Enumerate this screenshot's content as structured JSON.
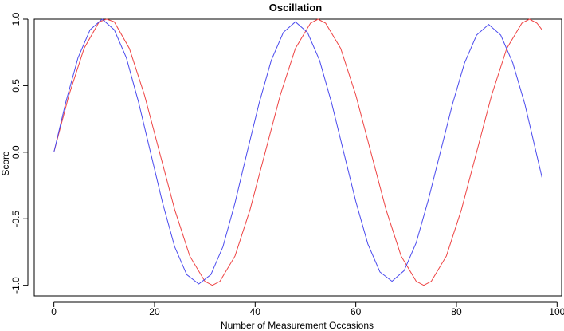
{
  "chart_data": {
    "type": "line",
    "title": "Oscillation",
    "xlabel": "Number of Measurement Occasions",
    "ylabel": "Score",
    "xlim": [
      -3.9,
      100.9
    ],
    "ylim": [
      -1.08,
      1.0
    ],
    "xticks": [
      0,
      20,
      40,
      60,
      80,
      100
    ],
    "yticks": [
      -1.0,
      -0.5,
      0.0,
      0.5,
      1.0
    ],
    "xtick_labels": [
      "0",
      "20",
      "40",
      "60",
      "80",
      "100"
    ],
    "ytick_labels": [
      "-1.0",
      "-0.5",
      "0.0",
      "0.5",
      "1.0"
    ],
    "grid": false,
    "legend": "none",
    "series": [
      {
        "color": "#ee4444",
        "x": [
          0,
          3,
          6,
          9,
          10.5,
          12,
          15,
          18,
          21,
          24,
          27,
          30,
          31.5,
          33,
          36,
          39,
          42,
          45,
          48,
          51,
          52.5,
          54,
          57,
          60,
          63,
          66,
          69,
          72,
          73.5,
          75,
          78,
          81,
          84,
          87,
          90,
          93,
          94.5,
          96,
          97
        ],
        "y": [
          0,
          0.43,
          0.78,
          0.98,
          1.0,
          0.98,
          0.78,
          0.43,
          0,
          -0.43,
          -0.78,
          -0.97,
          -1.0,
          -0.97,
          -0.78,
          -0.43,
          0,
          0.43,
          0.78,
          0.97,
          1.0,
          0.97,
          0.78,
          0.43,
          0,
          -0.43,
          -0.78,
          -0.97,
          -1.0,
          -0.97,
          -0.78,
          -0.43,
          0,
          0.43,
          0.78,
          0.97,
          1.0,
          0.97,
          0.92
        ]
      },
      {
        "color": "#4b4bee",
        "x": [
          0,
          2.4,
          4.8,
          7.2,
          9.6,
          12,
          14.4,
          16.8,
          19.2,
          21.6,
          24,
          26.4,
          28.8,
          31.2,
          33.6,
          36,
          38.4,
          40.8,
          43.2,
          45.6,
          48,
          50.4,
          52.8,
          55.2,
          57.6,
          60,
          62.4,
          64.8,
          67.2,
          69.6,
          72,
          74.4,
          76.8,
          79.2,
          81.6,
          84,
          86.4,
          88.8,
          91.2,
          93.6,
          97
        ],
        "y": [
          0,
          0.38,
          0.71,
          0.92,
          1.0,
          0.92,
          0.71,
          0.38,
          0,
          -0.38,
          -0.71,
          -0.92,
          -0.99,
          -0.92,
          -0.71,
          -0.38,
          0,
          0.37,
          0.69,
          0.9,
          0.98,
          0.9,
          0.69,
          0.37,
          0,
          -0.37,
          -0.69,
          -0.9,
          -0.97,
          -0.89,
          -0.68,
          -0.36,
          0,
          0.36,
          0.67,
          0.88,
          0.96,
          0.88,
          0.67,
          0.36,
          -0.19
        ]
      }
    ]
  }
}
